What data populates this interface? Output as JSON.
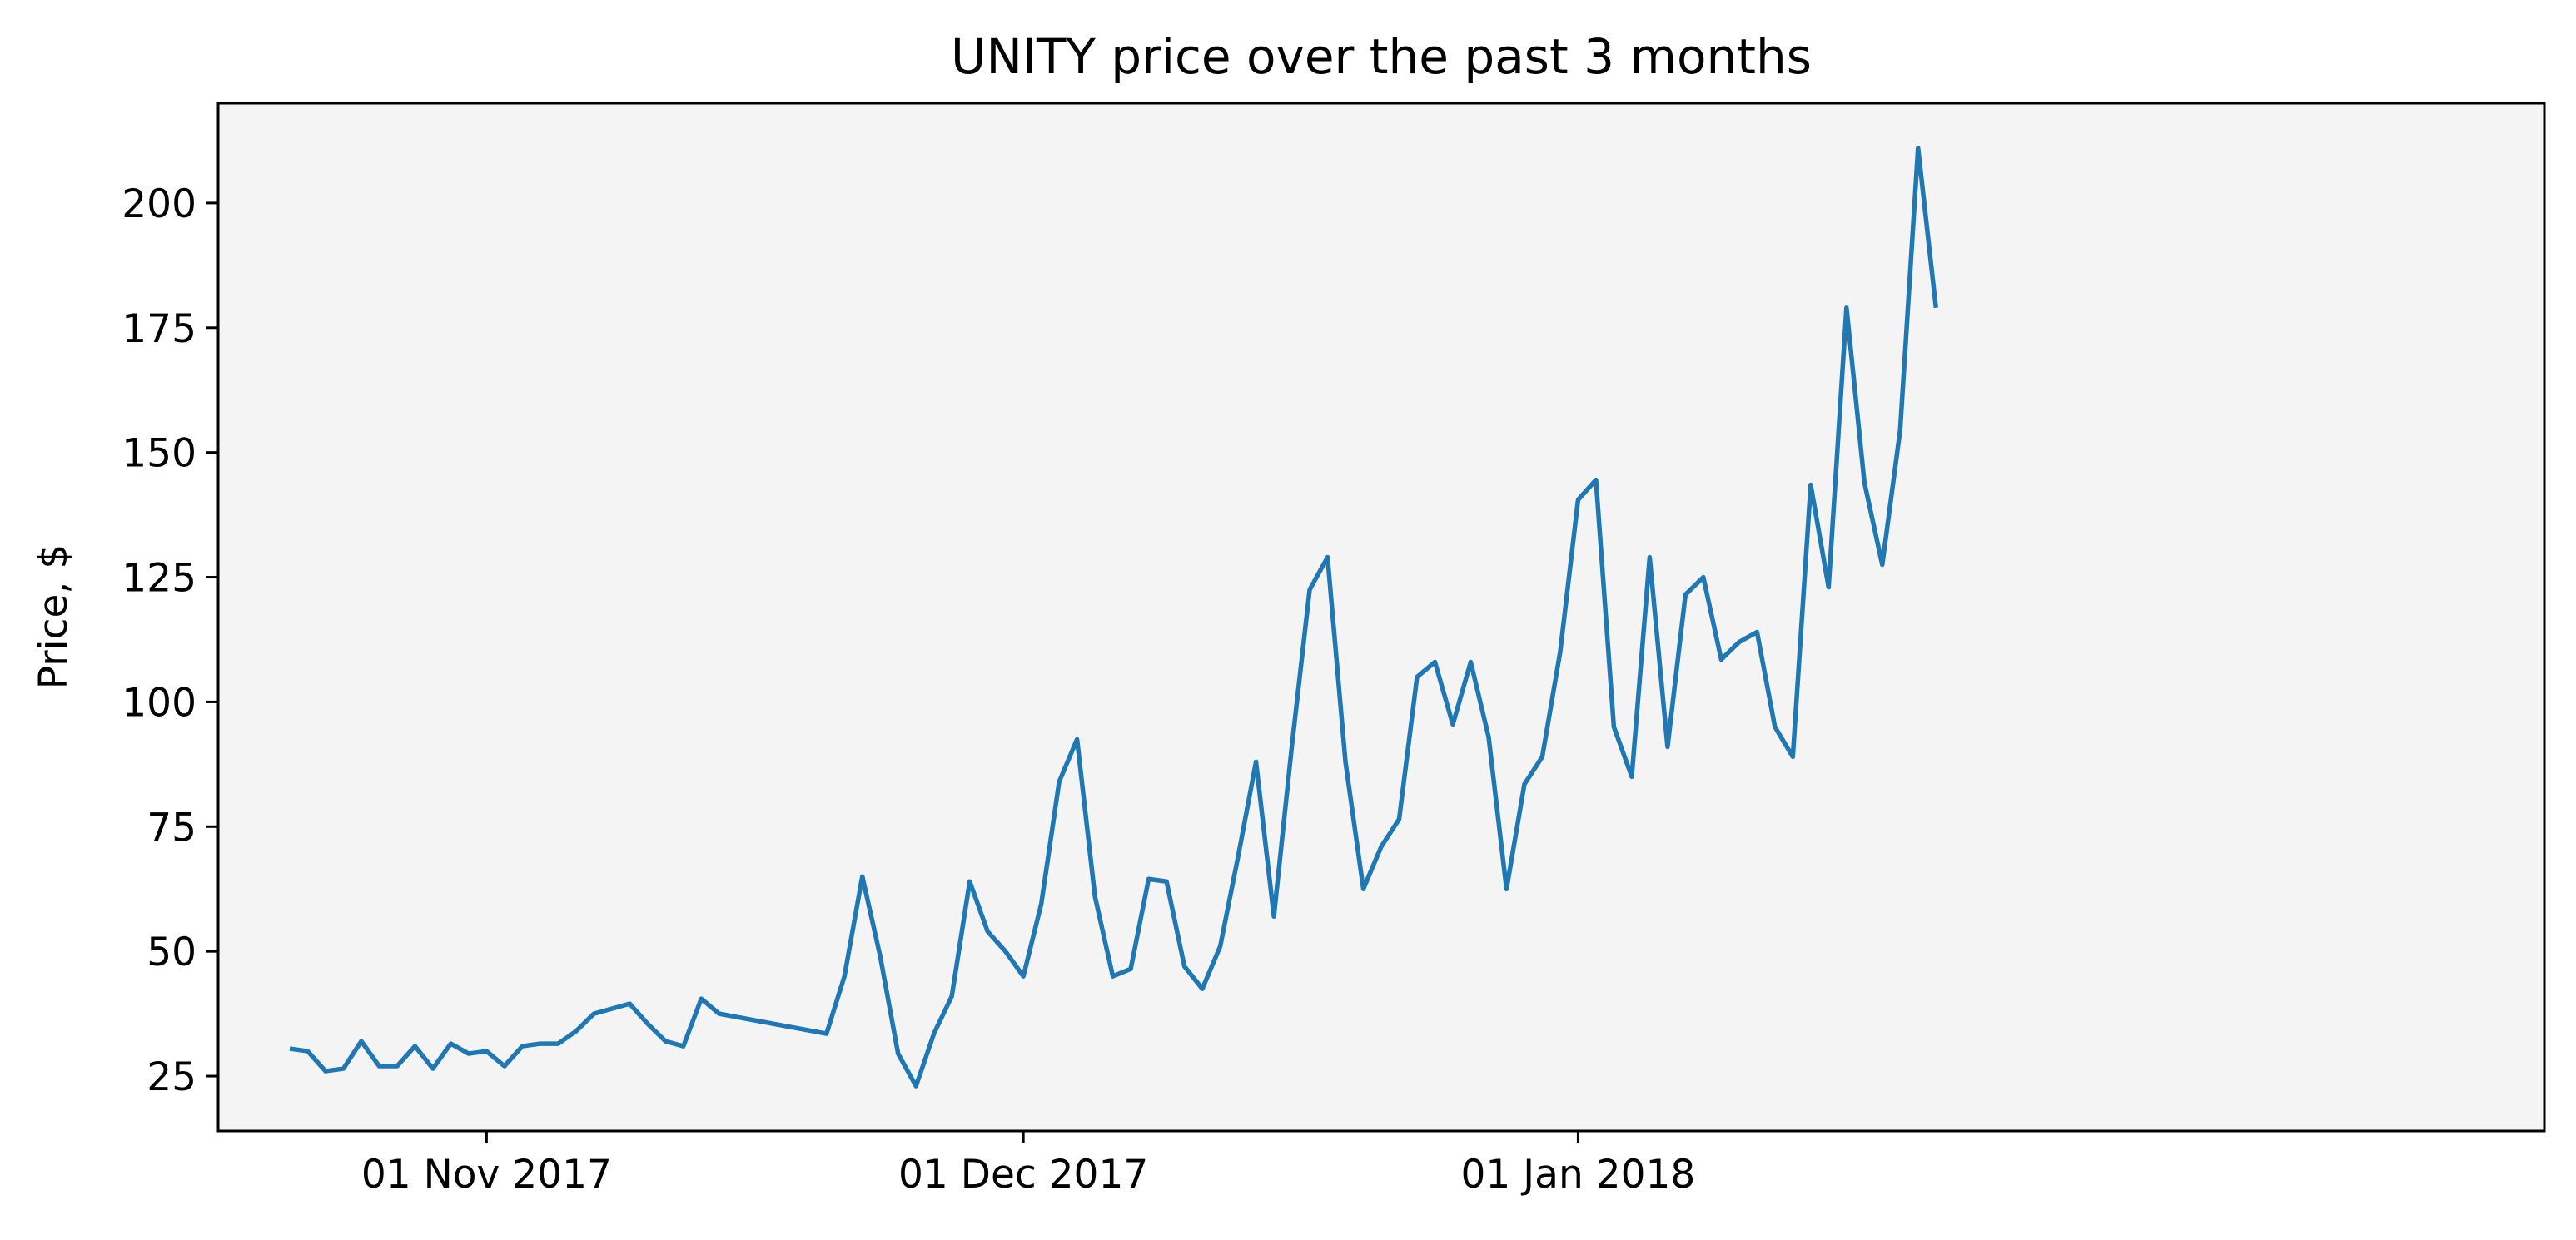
{
  "chart_data": {
    "type": "line",
    "title": "UNITY price over the past 3 months",
    "xlabel": "",
    "ylabel": "Price, $",
    "x_ticks": [
      {
        "date": "2017-11-01",
        "label": "01 Nov 2017"
      },
      {
        "date": "2017-12-01",
        "label": "01 Dec 2017"
      },
      {
        "date": "2018-01-01",
        "label": "01 Jan 2018"
      }
    ],
    "y_ticks": [
      25,
      50,
      75,
      100,
      125,
      150,
      175,
      200
    ],
    "xlim": [
      "2017-10-17",
      "2018-02-24"
    ],
    "ylim": [
      14,
      220
    ],
    "grid": false,
    "background": "#f4f4f4",
    "line_color": "#1f77b4",
    "series": [
      {
        "x": [
          "2017-10-21",
          "2017-10-22",
          "2017-10-23",
          "2017-10-24",
          "2017-10-25",
          "2017-10-26",
          "2017-10-27",
          "2017-10-28",
          "2017-10-29",
          "2017-10-30",
          "2017-10-31",
          "2017-11-01",
          "2017-11-02",
          "2017-11-03",
          "2017-11-04",
          "2017-11-05",
          "2017-11-06",
          "2017-11-07",
          "2017-11-08",
          "2017-11-09",
          "2017-11-10",
          "2017-11-11",
          "2017-11-12",
          "2017-11-13",
          "2017-11-14",
          "2017-11-20",
          "2017-11-21",
          "2017-11-22",
          "2017-11-23",
          "2017-11-24",
          "2017-11-25",
          "2017-11-26",
          "2017-11-27",
          "2017-11-28",
          "2017-11-29",
          "2017-11-30",
          "2017-12-01",
          "2017-12-02",
          "2017-12-03",
          "2017-12-04",
          "2017-12-05",
          "2017-12-06",
          "2017-12-07",
          "2017-12-08",
          "2017-12-09",
          "2017-12-10",
          "2017-12-11",
          "2017-12-12",
          "2017-12-13",
          "2017-12-14",
          "2017-12-15",
          "2017-12-16",
          "2017-12-17",
          "2017-12-18",
          "2017-12-19",
          "2017-12-20",
          "2017-12-21",
          "2017-12-22",
          "2017-12-23",
          "2017-12-24",
          "2017-12-25",
          "2017-12-26",
          "2017-12-27",
          "2017-12-28",
          "2017-12-29",
          "2017-12-30",
          "2017-12-31",
          "2018-01-01",
          "2018-01-02",
          "2018-01-03",
          "2018-01-04",
          "2018-01-05",
          "2018-01-06",
          "2018-01-07",
          "2018-01-08",
          "2018-01-09",
          "2018-01-10",
          "2018-01-11",
          "2018-01-12",
          "2018-01-13",
          "2018-01-14",
          "2018-01-15",
          "2018-01-16",
          "2018-01-17",
          "2018-01-18",
          "2018-01-19",
          "2018-01-20",
          "2018-01-21",
          "2018-01-22",
          "2018-01-23",
          "2018-01-24",
          "2018-01-25",
          "2018-01-26",
          "2018-01-27"
        ],
        "y": [
          30.5,
          30,
          26,
          26.5,
          32,
          27,
          27,
          31,
          26.5,
          31.5,
          29.5,
          30,
          27,
          31,
          31.5,
          31.5,
          34,
          37.5,
          38.5,
          39.5,
          35.5,
          32,
          31,
          40.5,
          37.5,
          33.5,
          45,
          65,
          49,
          29.5,
          23,
          33.5,
          41,
          64,
          54,
          50,
          45,
          59.5,
          84,
          92.5,
          61,
          45,
          46.5,
          64.5,
          64,
          47,
          42.5,
          51,
          69,
          88,
          57,
          91,
          122.5,
          129,
          88,
          62.5,
          71,
          76.5,
          105,
          108,
          95.5,
          108,
          93,
          62.5,
          83.5,
          89,
          110,
          140.5,
          144.5,
          95,
          85,
          129,
          91,
          121.5,
          125,
          108.5,
          112,
          114,
          95,
          89,
          143.5,
          123,
          179,
          144,
          127.5,
          154.5,
          211,
          179,
          null,
          null,
          null,
          null,
          null,
          null
        ]
      }
    ]
  }
}
